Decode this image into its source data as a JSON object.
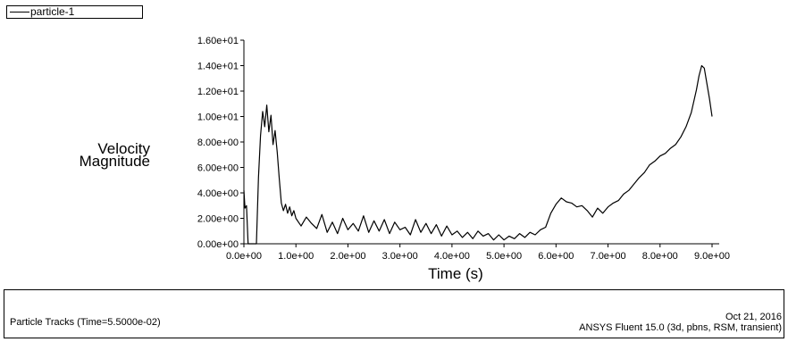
{
  "legend": {
    "series_label": "particle-1"
  },
  "footer": {
    "left_text": "Particle Tracks  (Time=5.5000e-02)",
    "date": "Oct 21, 2016",
    "software": "ANSYS Fluent 15.0 (3d, pbns, RSM, transient)"
  },
  "chart_data": {
    "type": "line",
    "ylabel_lines": [
      "Velocity",
      "Magnitude"
    ],
    "xlabel": "Time (s)",
    "ylim": [
      0,
      16
    ],
    "xlim": [
      0,
      9.0
    ],
    "yticks": [
      "0.00e+00",
      "2.00e+00",
      "4.00e+00",
      "6.00e+00",
      "8.00e+00",
      "1.00e+01",
      "1.20e+01",
      "1.40e+01",
      "1.60e+01"
    ],
    "xticks": [
      "0.0e+00",
      "1.0e+00",
      "2.0e+00",
      "3.0e+00",
      "4.0e+00",
      "5.0e+00",
      "6.0e+00",
      "7.0e+00",
      "8.0e+00",
      "9.0e+00"
    ],
    "grid": false,
    "legend_position": "top-left",
    "series": [
      {
        "name": "particle-1",
        "color": "#000000",
        "x": [
          0.0,
          0.02,
          0.05,
          0.08,
          0.12,
          0.16,
          0.2,
          0.24,
          0.28,
          0.32,
          0.36,
          0.4,
          0.44,
          0.48,
          0.52,
          0.56,
          0.6,
          0.64,
          0.68,
          0.72,
          0.76,
          0.8,
          0.84,
          0.88,
          0.92,
          0.96,
          1.0,
          1.1,
          1.2,
          1.3,
          1.4,
          1.5,
          1.6,
          1.7,
          1.8,
          1.9,
          2.0,
          2.1,
          2.2,
          2.3,
          2.4,
          2.5,
          2.6,
          2.7,
          2.8,
          2.9,
          3.0,
          3.1,
          3.2,
          3.3,
          3.4,
          3.5,
          3.6,
          3.7,
          3.8,
          3.9,
          4.0,
          4.1,
          4.2,
          4.3,
          4.4,
          4.5,
          4.6,
          4.7,
          4.8,
          4.9,
          5.0,
          5.1,
          5.2,
          5.3,
          5.4,
          5.5,
          5.6,
          5.7,
          5.8,
          5.9,
          6.0,
          6.1,
          6.2,
          6.3,
          6.4,
          6.5,
          6.6,
          6.7,
          6.8,
          6.9,
          7.0,
          7.1,
          7.2,
          7.3,
          7.4,
          7.5,
          7.6,
          7.7,
          7.8,
          7.9,
          8.0,
          8.1,
          8.2,
          8.3,
          8.4,
          8.5,
          8.6,
          8.7,
          8.75,
          8.8,
          8.85,
          8.9,
          8.95,
          9.0
        ],
        "y": [
          4.2,
          2.8,
          3.0,
          0.0,
          0.0,
          0.0,
          0.0,
          0.0,
          5.2,
          8.5,
          10.4,
          9.2,
          10.9,
          8.8,
          10.1,
          7.8,
          8.9,
          7.2,
          5.1,
          3.2,
          2.6,
          3.1,
          2.4,
          2.9,
          2.2,
          2.6,
          2.0,
          1.4,
          2.1,
          1.6,
          1.2,
          2.3,
          0.9,
          1.7,
          0.8,
          2.0,
          1.1,
          1.6,
          1.0,
          2.2,
          0.9,
          1.8,
          1.0,
          1.9,
          0.8,
          1.7,
          1.1,
          1.3,
          0.7,
          1.9,
          0.9,
          1.6,
          0.8,
          1.5,
          0.6,
          1.4,
          0.7,
          1.0,
          0.5,
          0.9,
          0.4,
          1.0,
          0.6,
          0.8,
          0.3,
          0.7,
          0.3,
          0.6,
          0.4,
          0.8,
          0.5,
          0.9,
          0.7,
          1.1,
          1.3,
          2.4,
          3.1,
          3.6,
          3.3,
          3.2,
          2.9,
          3.0,
          2.6,
          2.1,
          2.8,
          2.4,
          2.9,
          3.2,
          3.4,
          3.9,
          4.2,
          4.7,
          5.2,
          5.6,
          6.2,
          6.5,
          6.9,
          7.1,
          7.5,
          7.8,
          8.4,
          9.2,
          10.3,
          12.1,
          13.2,
          14.0,
          13.8,
          12.6,
          11.4,
          10.0
        ]
      }
    ]
  }
}
